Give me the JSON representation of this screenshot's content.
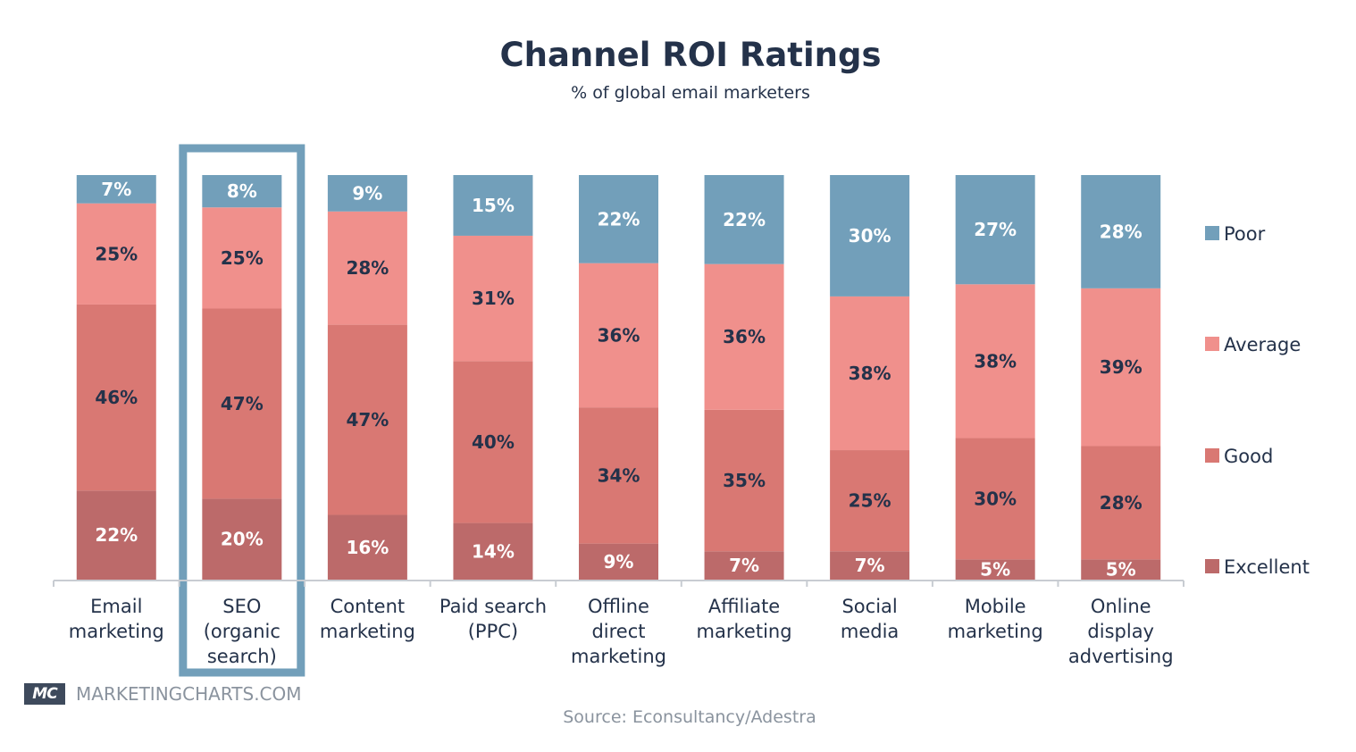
{
  "chart_data": {
    "type": "bar",
    "stacked": true,
    "title": "Channel ROI Ratings",
    "subtitle": "% of global email marketers",
    "xlabel": "",
    "ylabel": "",
    "ylim": [
      0,
      100
    ],
    "grid": false,
    "legend_position": "right",
    "categories": [
      [
        "Email",
        "marketing"
      ],
      [
        "SEO",
        "(organic",
        "search)"
      ],
      [
        "Content",
        "marketing"
      ],
      [
        "Paid search",
        "(PPC)"
      ],
      [
        "Offline",
        "direct",
        "marketing"
      ],
      [
        "Affiliate",
        "marketing"
      ],
      [
        "Social",
        "media"
      ],
      [
        "Mobile",
        "marketing"
      ],
      [
        "Online",
        "display",
        "advertising"
      ]
    ],
    "highlighted_category_index": 1,
    "series": [
      {
        "name": "Excellent",
        "color": "#bc6a6a",
        "label_color": "#ffffff",
        "values": [
          22,
          20,
          16,
          14,
          9,
          7,
          7,
          5,
          5
        ]
      },
      {
        "name": "Good",
        "color": "#d97873",
        "label_color": "#24324a",
        "values": [
          46,
          47,
          47,
          40,
          34,
          35,
          25,
          30,
          28
        ]
      },
      {
        "name": "Average",
        "color": "#f0908c",
        "label_color": "#24324a",
        "values": [
          25,
          25,
          28,
          31,
          36,
          36,
          38,
          38,
          39
        ]
      },
      {
        "name": "Poor",
        "color": "#729fba",
        "label_color": "#ffffff",
        "values": [
          7,
          8,
          9,
          15,
          22,
          22,
          30,
          27,
          28
        ]
      }
    ],
    "legend_order": [
      "Poor",
      "Average",
      "Good",
      "Excellent"
    ],
    "value_suffix": "%"
  },
  "colors": {
    "highlight_box": "#729fba",
    "axis": "#c8ccd2",
    "text_dark": "#24324a"
  },
  "branding": {
    "logo": "MC",
    "site": "MARKETINGCHARTS.COM"
  },
  "source": "Source: Econsultancy/Adestra"
}
